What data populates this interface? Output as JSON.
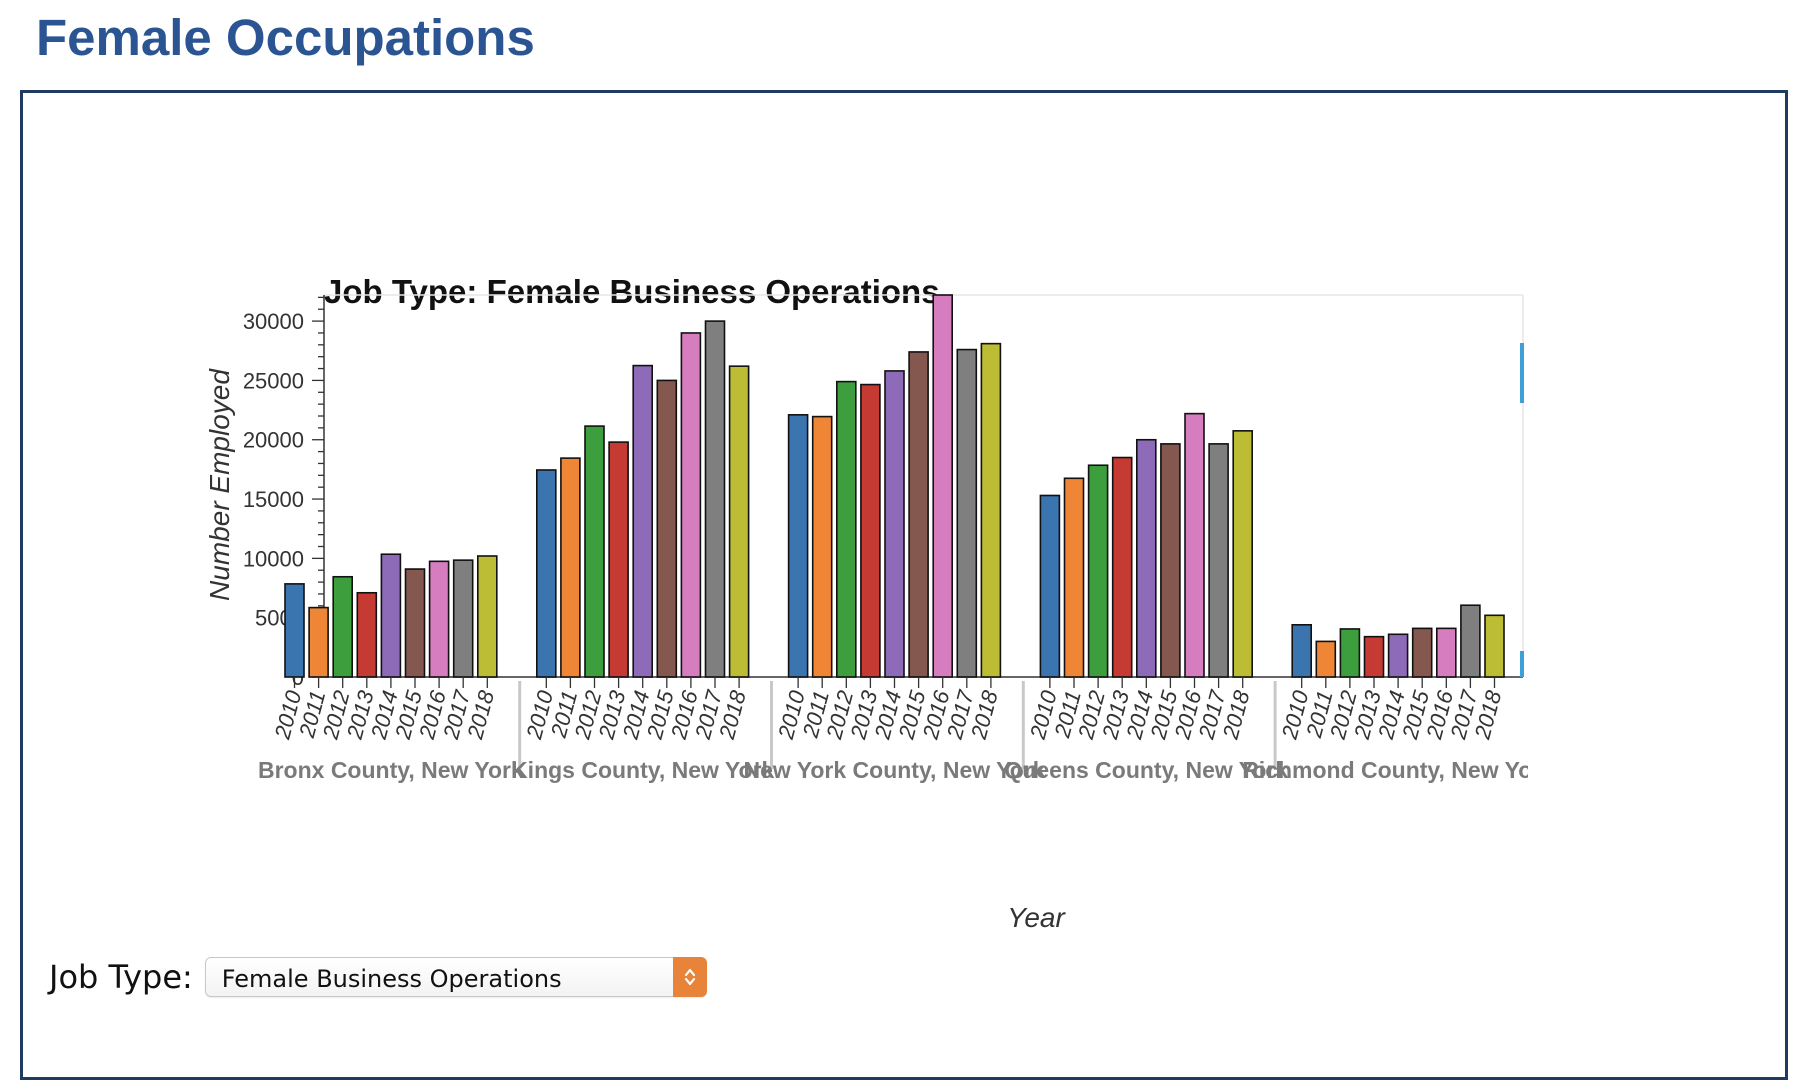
{
  "page": {
    "title": "Female Occupations"
  },
  "selector": {
    "label": "Job Type:",
    "value": "Female Business Operations"
  },
  "chart_data": {
    "type": "bar",
    "title": "Job Type: Female Business Operations",
    "xlabel": "Year",
    "ylabel": "Number Employed",
    "ylim": [
      0,
      32200
    ],
    "yticks": [
      0,
      5000,
      10000,
      15000,
      20000,
      25000,
      30000
    ],
    "grid": false,
    "groups": [
      "Bronx County, New York",
      "Kings County, New York",
      "New York County, New York",
      "Queens County, New York",
      "Richmond County, New York"
    ],
    "categories": [
      "2010",
      "2011",
      "2012",
      "2013",
      "2014",
      "2015",
      "2016",
      "2017",
      "2018"
    ],
    "values": [
      [
        7850,
        5850,
        8450,
        7100,
        10350,
        9100,
        9750,
        9850,
        10200
      ],
      [
        17450,
        18450,
        21150,
        19800,
        26250,
        25000,
        29000,
        30000,
        26200
      ],
      [
        22100,
        21950,
        24900,
        24650,
        25800,
        27400,
        32300,
        27600,
        28100
      ],
      [
        15300,
        16750,
        17850,
        18500,
        20000,
        19650,
        22200,
        19650,
        20750
      ],
      [
        4400,
        3000,
        4050,
        3400,
        3600,
        4100,
        4100,
        6050,
        5200
      ]
    ],
    "colors": [
      "#3a75b0",
      "#ef8636",
      "#3d9e3d",
      "#c53a32",
      "#8d6bb8",
      "#84584e",
      "#d57dbf",
      "#7f7f7f",
      "#bcbc35"
    ],
    "legend": "none"
  }
}
